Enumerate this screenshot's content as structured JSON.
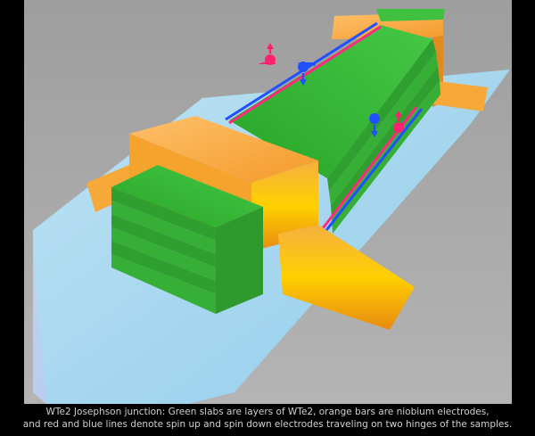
{
  "caption": {
    "line1": "WTe2 Josephson junction: Green slabs are layers of WTe2, orange bars are niobium electrodes,",
    "line2": "and red and blue lines denote spin up and spin down electrodes traveling on two hinges of the samples."
  },
  "colors": {
    "background": "#000000",
    "panel": "#a6a6a6",
    "substrate": "#a7d9f2",
    "wte2_green": "#34b534",
    "niobium_orange": "#f5a030",
    "spin_up_red": "#ff2070",
    "spin_down_blue": "#2050ff"
  }
}
